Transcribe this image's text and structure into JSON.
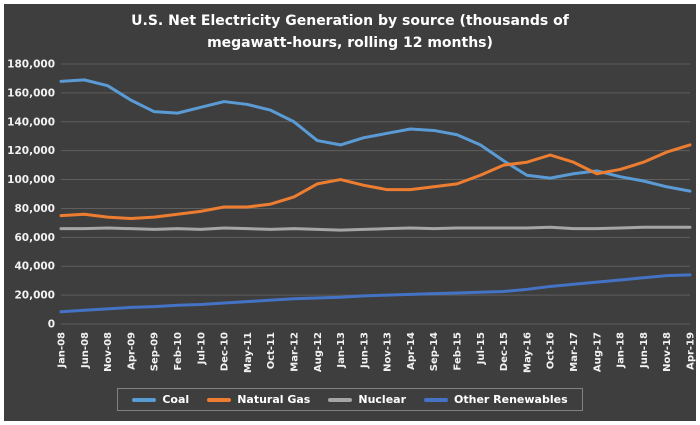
{
  "title_line1": "U.S. Net Electricity Generation by source (thousands of",
  "title_line2": "megawatt-hours, rolling 12 months)",
  "colors": {
    "background": "#3e3e3e",
    "frame": "#ffffff",
    "grid": "#5f5f5f",
    "text": "#f2f2f2",
    "legend_border": "#818181"
  },
  "chart_data": {
    "type": "line",
    "title": "U.S. Net Electricity Generation by source (thousands of megawatt-hours, rolling 12 months)",
    "xlabel": "",
    "ylabel": "",
    "ylim": [
      0,
      180000
    ],
    "ytick_step": 20000,
    "grid": true,
    "legend_position": "bottom",
    "x": [
      "Jan-08",
      "Jun-08",
      "Nov-08",
      "Apr-09",
      "Sep-09",
      "Feb-10",
      "Jul-10",
      "Dec-10",
      "May-11",
      "Oct-11",
      "Mar-12",
      "Aug-12",
      "Jan-13",
      "Jun-13",
      "Nov-13",
      "Apr-14",
      "Sep-14",
      "Feb-15",
      "Jul-15",
      "Dec-15",
      "May-16",
      "Oct-16",
      "Mar-17",
      "Aug-17",
      "Jan-18",
      "Jun-18",
      "Nov-18",
      "Apr-19"
    ],
    "series": [
      {
        "name": "Coal",
        "color": "#5B9BD5",
        "values": [
          168000,
          169000,
          165000,
          155000,
          147000,
          146000,
          150000,
          154000,
          152000,
          148000,
          140000,
          127000,
          124000,
          129000,
          132000,
          135000,
          134000,
          131000,
          124000,
          113000,
          103000,
          101000,
          104000,
          106000,
          102000,
          99000,
          95000,
          92000
        ]
      },
      {
        "name": "Natural Gas",
        "color": "#ED7D31",
        "values": [
          75000,
          76000,
          74000,
          73000,
          74000,
          76000,
          78000,
          81000,
          81000,
          83000,
          88000,
          97000,
          100000,
          96000,
          93000,
          93000,
          95000,
          97000,
          103000,
          110000,
          112000,
          117000,
          112000,
          104000,
          107000,
          112000,
          119000,
          124000
        ]
      },
      {
        "name": "Nuclear",
        "color": "#A5A5A5",
        "values": [
          66000,
          66000,
          66500,
          66000,
          65500,
          66000,
          65500,
          66500,
          66000,
          65500,
          66000,
          65500,
          65000,
          65500,
          66000,
          66500,
          66000,
          66500,
          66500,
          66500,
          66500,
          67000,
          66000,
          66000,
          66500,
          67000,
          67000,
          67000
        ]
      },
      {
        "name": "Other Renewables",
        "color": "#4472C4",
        "values": [
          8500,
          9500,
          10500,
          11500,
          12000,
          13000,
          13500,
          14500,
          15500,
          16500,
          17500,
          18000,
          18500,
          19500,
          20000,
          20500,
          21000,
          21500,
          22000,
          22500,
          24000,
          26000,
          27500,
          29000,
          30500,
          32000,
          33500,
          34000
        ]
      }
    ]
  }
}
